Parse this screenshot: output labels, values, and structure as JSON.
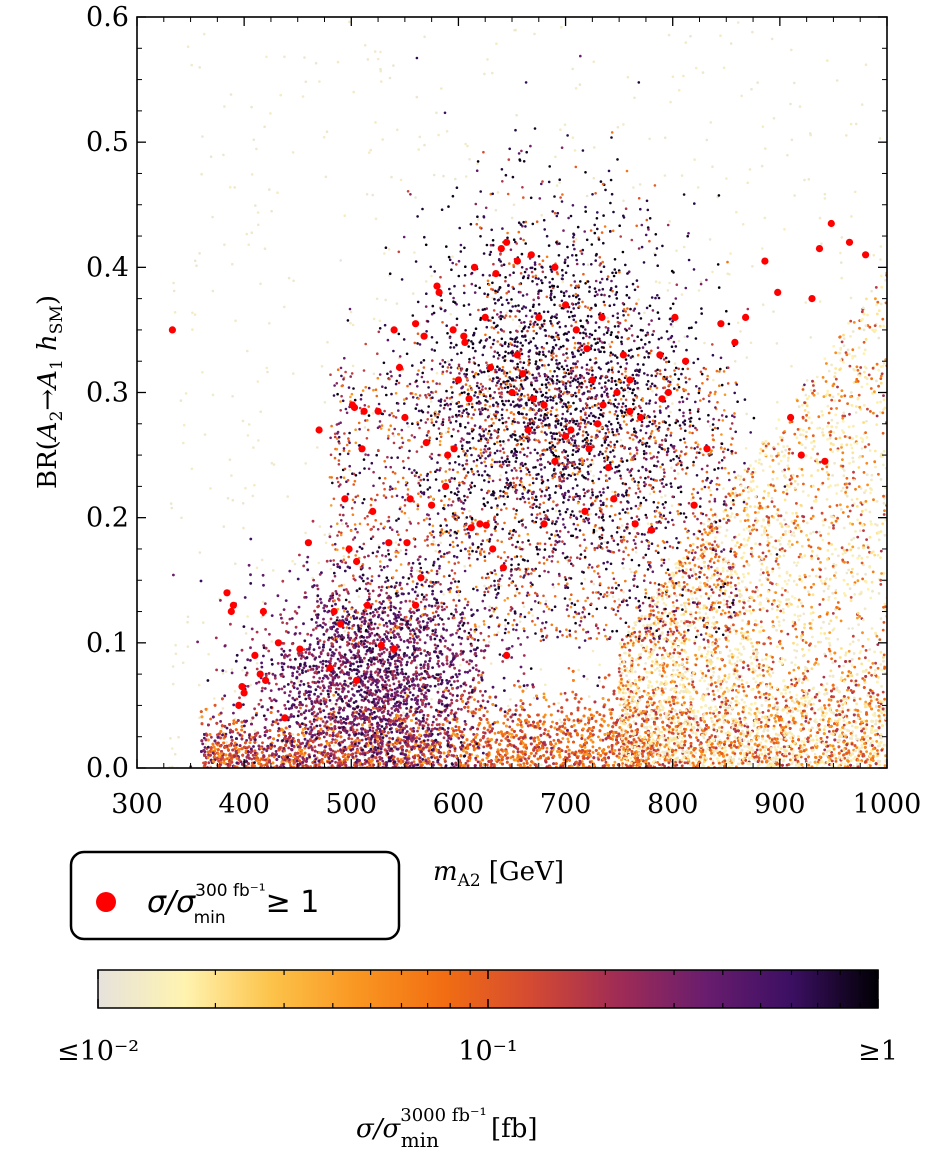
{
  "chart_data": {
    "type": "scatter",
    "xlabel": "m_A2 [GeV]",
    "xlabel_parts": {
      "main": "m",
      "sub": "A2",
      "unit": "[GeV]"
    },
    "ylabel": "BR(A2→A1 hSM)",
    "ylabel_parts": {
      "pre": "BR(",
      "a2": "A",
      "a2_sub": "2",
      "arrow": "→",
      "a1": "A",
      "a1_sub": "1",
      "h": " h",
      "h_sub": "SM",
      "post": ")"
    },
    "xlim": [
      300,
      1000
    ],
    "ylim": [
      0.0,
      0.6
    ],
    "x_ticks": [
      "300",
      "400",
      "500",
      "600",
      "700",
      "800",
      "900",
      "1000"
    ],
    "y_ticks": [
      "0.0",
      "0.1",
      "0.2",
      "0.3",
      "0.4",
      "0.5",
      "0.6"
    ],
    "legend": {
      "marker_color": "#ff0000",
      "label_main": "σ/σ",
      "label_sup": "300 fb⁻¹",
      "label_sub": "min",
      "label_tail": "≥ 1",
      "label": "σ/σ_min^(300 fb⁻¹) ≥ 1",
      "position": "below-left"
    },
    "colorbar": {
      "label_main": "σ/σ",
      "label_sup": "3000 fb⁻¹",
      "label_sub": "min",
      "label_tail": "[fb]",
      "label": "σ/σ_min^(3000 fb⁻¹) [fb]",
      "ticks": [
        "≤10⁻²",
        "10⁻¹",
        "≥1"
      ],
      "scale": "log",
      "range": [
        0.01,
        1
      ],
      "colormap": [
        "#e6e2dc",
        "#fff3b0",
        "#fcc34a",
        "#f99621",
        "#f26d12",
        "#d44a32",
        "#a02c55",
        "#6a1d6e",
        "#3c0f63",
        "#000004"
      ]
    },
    "highlighted_points": [
      [
        333,
        0.35
      ],
      [
        384,
        0.14
      ],
      [
        388,
        0.125
      ],
      [
        390,
        0.13
      ],
      [
        395,
        0.05
      ],
      [
        398,
        0.065
      ],
      [
        400,
        0.06
      ],
      [
        410,
        0.09
      ],
      [
        415,
        0.075
      ],
      [
        418,
        0.125
      ],
      [
        420,
        0.07
      ],
      [
        432,
        0.1
      ],
      [
        438,
        0.04
      ],
      [
        452,
        0.095
      ],
      [
        460,
        0.18
      ],
      [
        470,
        0.27
      ],
      [
        480,
        0.08
      ],
      [
        490,
        0.115
      ],
      [
        494,
        0.215
      ],
      [
        498,
        0.175
      ],
      [
        501,
        0.29
      ],
      [
        503,
        0.288
      ],
      [
        505,
        0.165
      ],
      [
        510,
        0.255
      ],
      [
        512,
        0.285
      ],
      [
        515,
        0.13
      ],
      [
        520,
        0.205
      ],
      [
        525,
        0.285
      ],
      [
        535,
        0.18
      ],
      [
        540,
        0.35
      ],
      [
        545,
        0.32
      ],
      [
        550,
        0.28
      ],
      [
        555,
        0.215
      ],
      [
        560,
        0.355
      ],
      [
        568,
        0.345
      ],
      [
        570,
        0.26
      ],
      [
        575,
        0.21
      ],
      [
        580,
        0.385
      ],
      [
        582,
        0.38
      ],
      [
        590,
        0.25
      ],
      [
        595,
        0.35
      ],
      [
        600,
        0.31
      ],
      [
        605,
        0.345
      ],
      [
        610,
        0.295
      ],
      [
        615,
        0.4
      ],
      [
        620,
        0.195
      ],
      [
        625,
        0.36
      ],
      [
        630,
        0.32
      ],
      [
        635,
        0.395
      ],
      [
        640,
        0.415
      ],
      [
        645,
        0.42
      ],
      [
        650,
        0.3
      ],
      [
        655,
        0.405
      ],
      [
        660,
        0.315
      ],
      [
        665,
        0.27
      ],
      [
        670,
        0.295
      ],
      [
        675,
        0.36
      ],
      [
        680,
        0.29
      ],
      [
        690,
        0.4
      ],
      [
        700,
        0.265
      ],
      [
        710,
        0.35
      ],
      [
        720,
        0.335
      ],
      [
        725,
        0.31
      ],
      [
        730,
        0.275
      ],
      [
        740,
        0.24
      ],
      [
        748,
        0.3
      ],
      [
        760,
        0.31
      ],
      [
        770,
        0.28
      ],
      [
        780,
        0.19
      ],
      [
        788,
        0.33
      ],
      [
        796,
        0.3
      ],
      [
        802,
        0.36
      ],
      [
        812,
        0.325
      ],
      [
        820,
        0.21
      ],
      [
        832,
        0.255
      ],
      [
        845,
        0.355
      ],
      [
        858,
        0.34
      ],
      [
        868,
        0.36
      ],
      [
        886,
        0.405
      ],
      [
        898,
        0.38
      ],
      [
        910,
        0.28
      ],
      [
        920,
        0.25
      ],
      [
        930,
        0.375
      ],
      [
        937,
        0.415
      ],
      [
        942,
        0.245
      ],
      [
        948,
        0.435
      ],
      [
        965,
        0.42
      ],
      [
        980,
        0.41
      ],
      [
        626,
        0.194
      ],
      [
        642,
        0.16
      ],
      [
        606,
        0.34
      ],
      [
        560,
        0.13
      ],
      [
        528,
        0.098
      ],
      [
        612,
        0.192
      ],
      [
        690,
        0.245
      ],
      [
        722,
        0.255
      ],
      [
        734,
        0.36
      ],
      [
        754,
        0.33
      ],
      [
        596,
        0.255
      ],
      [
        655,
        0.33
      ],
      [
        668,
        0.41
      ],
      [
        700,
        0.37
      ],
      [
        718,
        0.205
      ],
      [
        745,
        0.215
      ],
      [
        765,
        0.195
      ],
      [
        790,
        0.295
      ],
      [
        484,
        0.125
      ],
      [
        505,
        0.07
      ],
      [
        540,
        0.095
      ],
      [
        552,
        0.18
      ],
      [
        565,
        0.152
      ],
      [
        588,
        0.225
      ],
      [
        632,
        0.175
      ],
      [
        645,
        0.09
      ],
      [
        680,
        0.195
      ],
      [
        705,
        0.27
      ],
      [
        735,
        0.29
      ],
      [
        760,
        0.285
      ]
    ],
    "dense_cloud_description_omitted": false
  }
}
